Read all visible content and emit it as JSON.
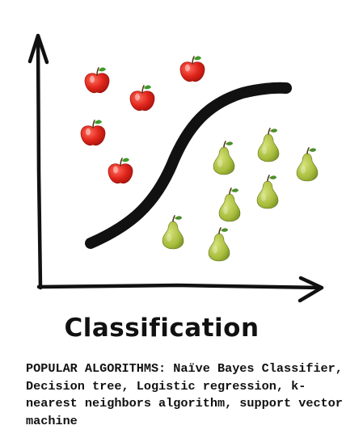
{
  "diagram": {
    "title": "Classification",
    "classes": [
      {
        "name": "apple",
        "icon": "apple-icon",
        "color": "#e0251b"
      },
      {
        "name": "pear",
        "icon": "pear-icon",
        "color": "#a9bd3d"
      }
    ],
    "boundary_color": "#111111"
  },
  "caption": {
    "text": "POPULAR ALGORITHMS: Naïve Bayes Classifier, Decision tree, Logistic regression, k-nearest neighbors algorithm, support vector machine"
  }
}
